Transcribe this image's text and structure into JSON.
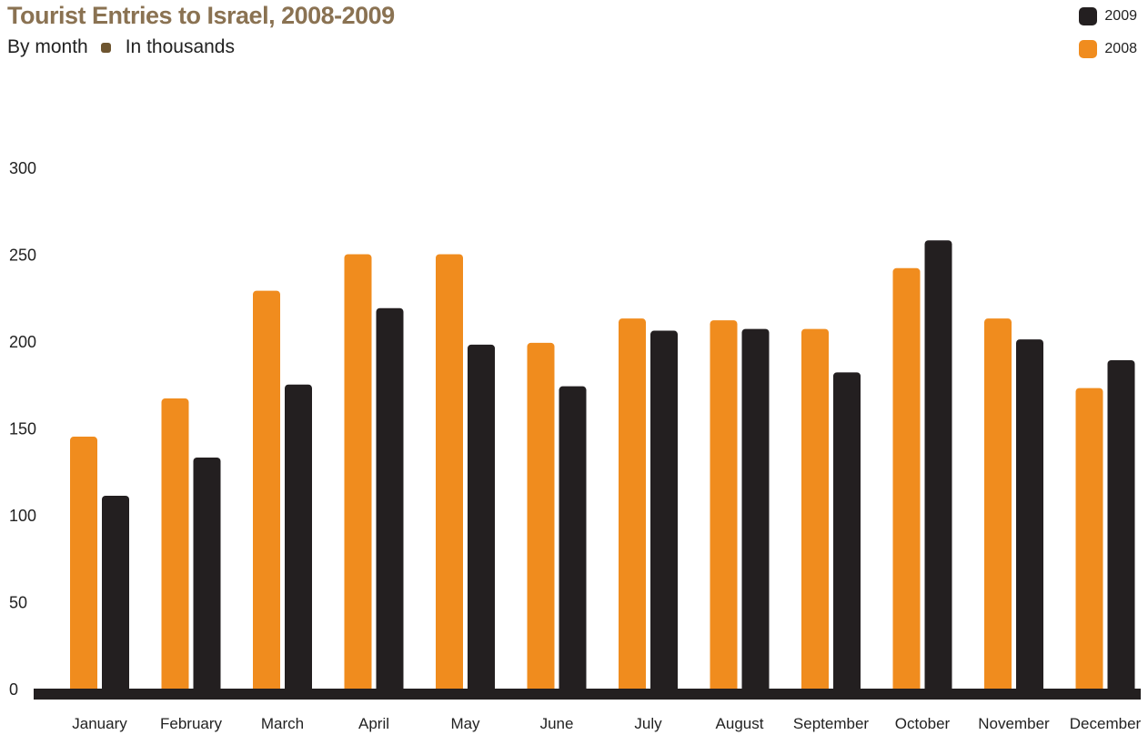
{
  "header": {
    "title": "Tourist Entries to Israel, 2008-2009",
    "subtitle_left": "By month",
    "subtitle_right": "In thousands"
  },
  "legend": [
    {
      "label": "2009",
      "color": "#231f20"
    },
    {
      "label": "2008",
      "color": "#f08c1e"
    }
  ],
  "chart_data": {
    "type": "bar",
    "title": "Tourist Entries to Israel, 2008-2009",
    "subtitle": "By month • In thousands",
    "categories": [
      "January",
      "February",
      "March",
      "April",
      "May",
      "June",
      "July",
      "August",
      "September",
      "October",
      "November",
      "December"
    ],
    "series": [
      {
        "name": "2008",
        "color": "#f08c1e",
        "values": [
          145,
          167,
          229,
          250,
          250,
          199,
          213,
          212,
          207,
          242,
          213,
          173
        ]
      },
      {
        "name": "2009",
        "color": "#231f20",
        "values": [
          111,
          133,
          175,
          219,
          198,
          174,
          206,
          207,
          182,
          258,
          201,
          189
        ]
      }
    ],
    "ylim": [
      0,
      300
    ],
    "yticks": [
      0,
      50,
      100,
      150,
      200,
      250,
      300
    ],
    "grid": false,
    "legend_position": "top-right"
  }
}
